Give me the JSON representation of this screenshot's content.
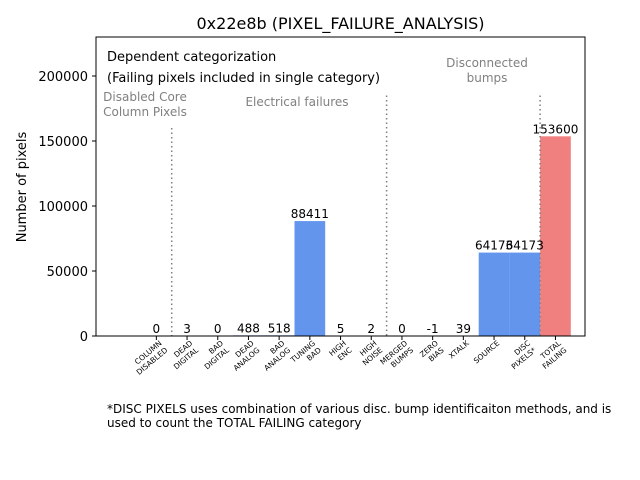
{
  "chart_data": {
    "type": "bar",
    "title": "0x22e8b (PIXEL_FAILURE_ANALYSIS)",
    "ylabel": "Number of pixels",
    "xlabel": "",
    "ylim": [
      0,
      230000
    ],
    "yticks": [
      0,
      50000,
      100000,
      150000,
      200000
    ],
    "grid": false,
    "categories": [
      "COLUMN DISABLED",
      "DEAD DIGITAL",
      "BAD DIGITAL",
      "DEAD ANALOG",
      "BAD ANALOG",
      "TUNING BAD",
      "HIGH ENC",
      "HIGH NOISE",
      "MERGED BUMPS",
      "ZERO BIAS",
      "XTALK",
      "SOURCE",
      "DISC PIXELS*",
      "TOTAL FAILING"
    ],
    "values": [
      0,
      3,
      0,
      488,
      518,
      88411,
      5,
      2,
      0,
      -1,
      39,
      64173,
      64173,
      153600
    ],
    "colors": [
      "#6495ED",
      "#6495ED",
      "#6495ED",
      "#6495ED",
      "#6495ED",
      "#6495ED",
      "#6495ED",
      "#6495ED",
      "#6495ED",
      "#6495ED",
      "#6495ED",
      "#6495ED",
      "#6495ED",
      "#F08080"
    ],
    "text_color": "#000000",
    "divider_color": "#808080",
    "group_label_color": "#808080",
    "legend_lines": [
      "Dependent categorization",
      "(Failing pixels included in single category)"
    ],
    "group_labels": [
      {
        "text": [
          "Disabled Core",
          "Column Pixels"
        ]
      },
      {
        "text": [
          "Electrical failures"
        ]
      },
      {
        "text": [
          "Disconnected",
          "bumps"
        ]
      }
    ]
  },
  "footnote": "*DISC PIXELS uses combination of various disc. bump identificaiton methods, and is used to count the TOTAL FAILING category"
}
